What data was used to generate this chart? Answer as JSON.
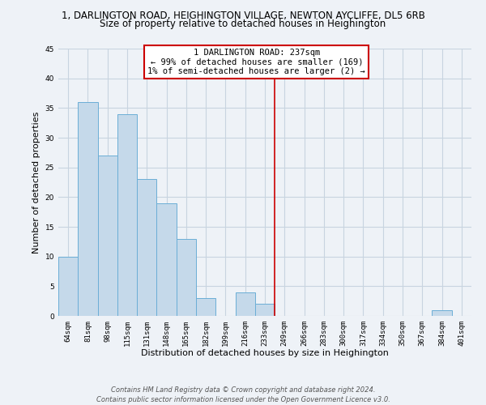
{
  "title_line1": "1, DARLINGTON ROAD, HEIGHINGTON VILLAGE, NEWTON AYCLIFFE, DL5 6RB",
  "title_line2": "Size of property relative to detached houses in Heighington",
  "xlabel": "Distribution of detached houses by size in Heighington",
  "ylabel": "Number of detached properties",
  "bar_labels": [
    "64sqm",
    "81sqm",
    "98sqm",
    "115sqm",
    "131sqm",
    "148sqm",
    "165sqm",
    "182sqm",
    "199sqm",
    "216sqm",
    "233sqm",
    "249sqm",
    "266sqm",
    "283sqm",
    "300sqm",
    "317sqm",
    "334sqm",
    "350sqm",
    "367sqm",
    "384sqm",
    "401sqm"
  ],
  "bar_values": [
    10,
    36,
    27,
    34,
    23,
    19,
    13,
    3,
    0,
    4,
    2,
    0,
    0,
    0,
    0,
    0,
    0,
    0,
    0,
    1,
    0
  ],
  "bar_color": "#c5d9ea",
  "bar_edge_color": "#6baed6",
  "annotation_box_text": "1 DARLINGTON ROAD: 237sqm\n← 99% of detached houses are smaller (169)\n1% of semi-detached houses are larger (2) →",
  "annotation_box_color": "#ffffff",
  "annotation_box_edge_color": "#cc0000",
  "vline_x": 10.5,
  "ylim": [
    0,
    45
  ],
  "yticks": [
    0,
    5,
    10,
    15,
    20,
    25,
    30,
    35,
    40,
    45
  ],
  "background_color": "#eef2f7",
  "grid_color": "#c8d4e0",
  "title_fontsize": 8.5,
  "subtitle_fontsize": 8.5,
  "axis_label_fontsize": 8,
  "tick_fontsize": 6.5,
  "annotation_fontsize": 7.5,
  "footer_fontsize": 6,
  "footer_line1": "Contains HM Land Registry data © Crown copyright and database right 2024.",
  "footer_line2": "Contains public sector information licensed under the Open Government Licence v3.0."
}
